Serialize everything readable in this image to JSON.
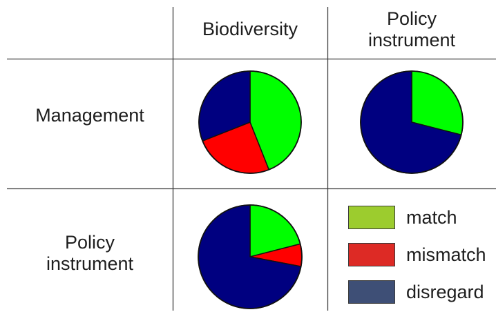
{
  "chart_data": {
    "type": "pie",
    "column_headers": [
      [
        "Biodiversity"
      ],
      [
        "Policy",
        "instrument"
      ]
    ],
    "row_headers": [
      [
        "Management"
      ],
      [
        "Policy",
        "instrument"
      ]
    ],
    "legend": [
      {
        "label": "match",
        "color": "#9ccc2e"
      },
      {
        "label": "mismatch",
        "color": "#dd2a25"
      },
      {
        "label": "disregard",
        "color": "#3e4f76"
      }
    ],
    "pies": [
      {
        "row": "Management",
        "column": "Biodiversity",
        "slices": [
          {
            "category": "match",
            "value": 44,
            "color": "#00ff00"
          },
          {
            "category": "mismatch",
            "value": 25,
            "color": "#ff0000"
          },
          {
            "category": "disregard",
            "value": 31,
            "color": "#000080"
          }
        ]
      },
      {
        "row": "Management",
        "column": "Policy instrument",
        "slices": [
          {
            "category": "match",
            "value": 29,
            "color": "#00ff00"
          },
          {
            "category": "disregard",
            "value": 71,
            "color": "#000080"
          }
        ]
      },
      {
        "row": "Policy instrument",
        "column": "Biodiversity",
        "slices": [
          {
            "category": "match",
            "value": 21,
            "color": "#00ff00"
          },
          {
            "category": "mismatch",
            "value": 7,
            "color": "#ff0000"
          },
          {
            "category": "disregard",
            "value": 72,
            "color": "#000080"
          }
        ]
      }
    ]
  }
}
